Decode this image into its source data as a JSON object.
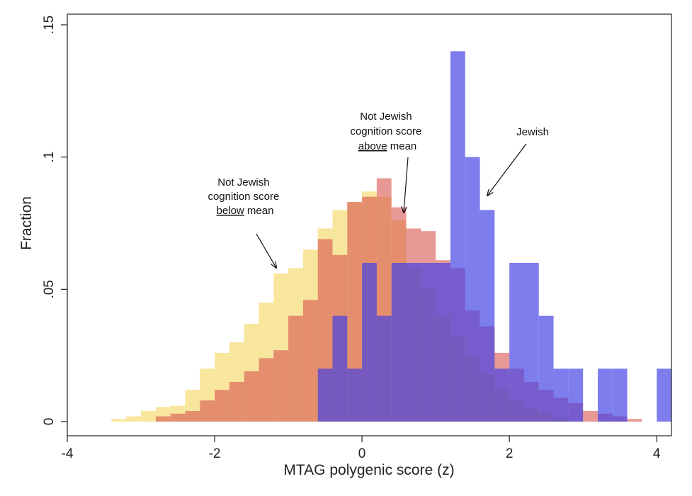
{
  "chart_data": {
    "type": "bar",
    "xlabel": "MTAG polygenic score (z)",
    "ylabel": "Fraction",
    "xlim": [
      -4.0,
      4.2
    ],
    "ylim": [
      0,
      0.15
    ],
    "x_ticks": [
      -4,
      -2,
      0,
      2,
      4
    ],
    "x_tick_labels": [
      "-4",
      "-2",
      "0",
      "2",
      "4"
    ],
    "y_ticks": [
      0,
      0.05,
      0.1,
      0.15
    ],
    "y_tick_labels": [
      "0",
      ".05",
      ".1",
      ".15"
    ],
    "series": [
      {
        "name": "Not Jewish cognition score below mean",
        "color": "#f3d55b",
        "opacity": 0.6,
        "bin_width": 0.2,
        "bin_starts": [
          -3.4,
          -3.2,
          -3.0,
          -2.8,
          -2.6,
          -2.4,
          -2.2,
          -2.0,
          -1.8,
          -1.6,
          -1.4,
          -1.2,
          -1.0,
          -0.8,
          -0.6,
          -0.4,
          -0.2,
          0.0,
          0.2,
          0.4,
          0.6,
          0.8,
          1.0,
          1.2,
          1.4,
          1.6,
          1.8,
          2.0,
          2.2,
          2.4,
          2.6
        ],
        "values": [
          0.001,
          0.002,
          0.004,
          0.0055,
          0.006,
          0.012,
          0.02,
          0.026,
          0.03,
          0.037,
          0.045,
          0.056,
          0.058,
          0.065,
          0.073,
          0.08,
          0.083,
          0.087,
          0.085,
          0.076,
          0.058,
          0.05,
          0.04,
          0.032,
          0.025,
          0.018,
          0.012,
          0.008,
          0.005,
          0.003,
          0.001
        ]
      },
      {
        "name": "Not Jewish cognition score above mean",
        "color": "#d9534f",
        "opacity": 0.6,
        "bin_width": 0.2,
        "bin_starts": [
          -2.8,
          -2.6,
          -2.4,
          -2.2,
          -2.0,
          -1.8,
          -1.6,
          -1.4,
          -1.2,
          -1.0,
          -0.8,
          -0.6,
          -0.4,
          -0.2,
          0.0,
          0.2,
          0.4,
          0.6,
          0.8,
          1.0,
          1.2,
          1.4,
          1.6,
          1.8,
          2.0,
          2.2,
          2.4,
          2.6,
          2.8,
          3.0,
          3.2,
          3.4,
          3.6
        ],
        "values": [
          0.002,
          0.003,
          0.004,
          0.008,
          0.012,
          0.015,
          0.019,
          0.024,
          0.027,
          0.04,
          0.046,
          0.069,
          0.063,
          0.083,
          0.085,
          0.092,
          0.081,
          0.073,
          0.072,
          0.061,
          0.058,
          0.042,
          0.036,
          0.026,
          0.02,
          0.015,
          0.012,
          0.009,
          0.007,
          0.004,
          0.003,
          0.002,
          0.001
        ]
      },
      {
        "name": "Jewish",
        "color": "#3f3fe6",
        "opacity": 0.68,
        "bin_width": 0.2,
        "bin_starts": [
          -0.6,
          -0.4,
          -0.2,
          0.0,
          0.2,
          0.4,
          0.6,
          0.8,
          1.0,
          1.2,
          1.4,
          1.6,
          1.8,
          2.0,
          2.2,
          2.4,
          2.6,
          2.8,
          3.0,
          3.2,
          3.4,
          3.6,
          3.8,
          4.0
        ],
        "values": [
          0.02,
          0.04,
          0.02,
          0.06,
          0.04,
          0.06,
          0.06,
          0.06,
          0.06,
          0.14,
          0.1,
          0.08,
          0.02,
          0.06,
          0.06,
          0.04,
          0.02,
          0.02,
          0.0,
          0.02,
          0.02,
          0.0,
          0.0,
          0.02
        ]
      }
    ],
    "annotations": [
      {
        "lines": [
          "Not Jewish",
          "cognition score"
        ],
        "underlined": "below",
        "rest": " mean",
        "series": "Not Jewish cognition score below mean"
      },
      {
        "lines": [
          "Not Jewish",
          "cognition score"
        ],
        "underlined": "above",
        "rest": " mean",
        "series": "Not Jewish cognition score above mean"
      },
      {
        "lines": [
          "Jewish"
        ],
        "underlined": "",
        "rest": "",
        "series": "Jewish"
      }
    ]
  }
}
